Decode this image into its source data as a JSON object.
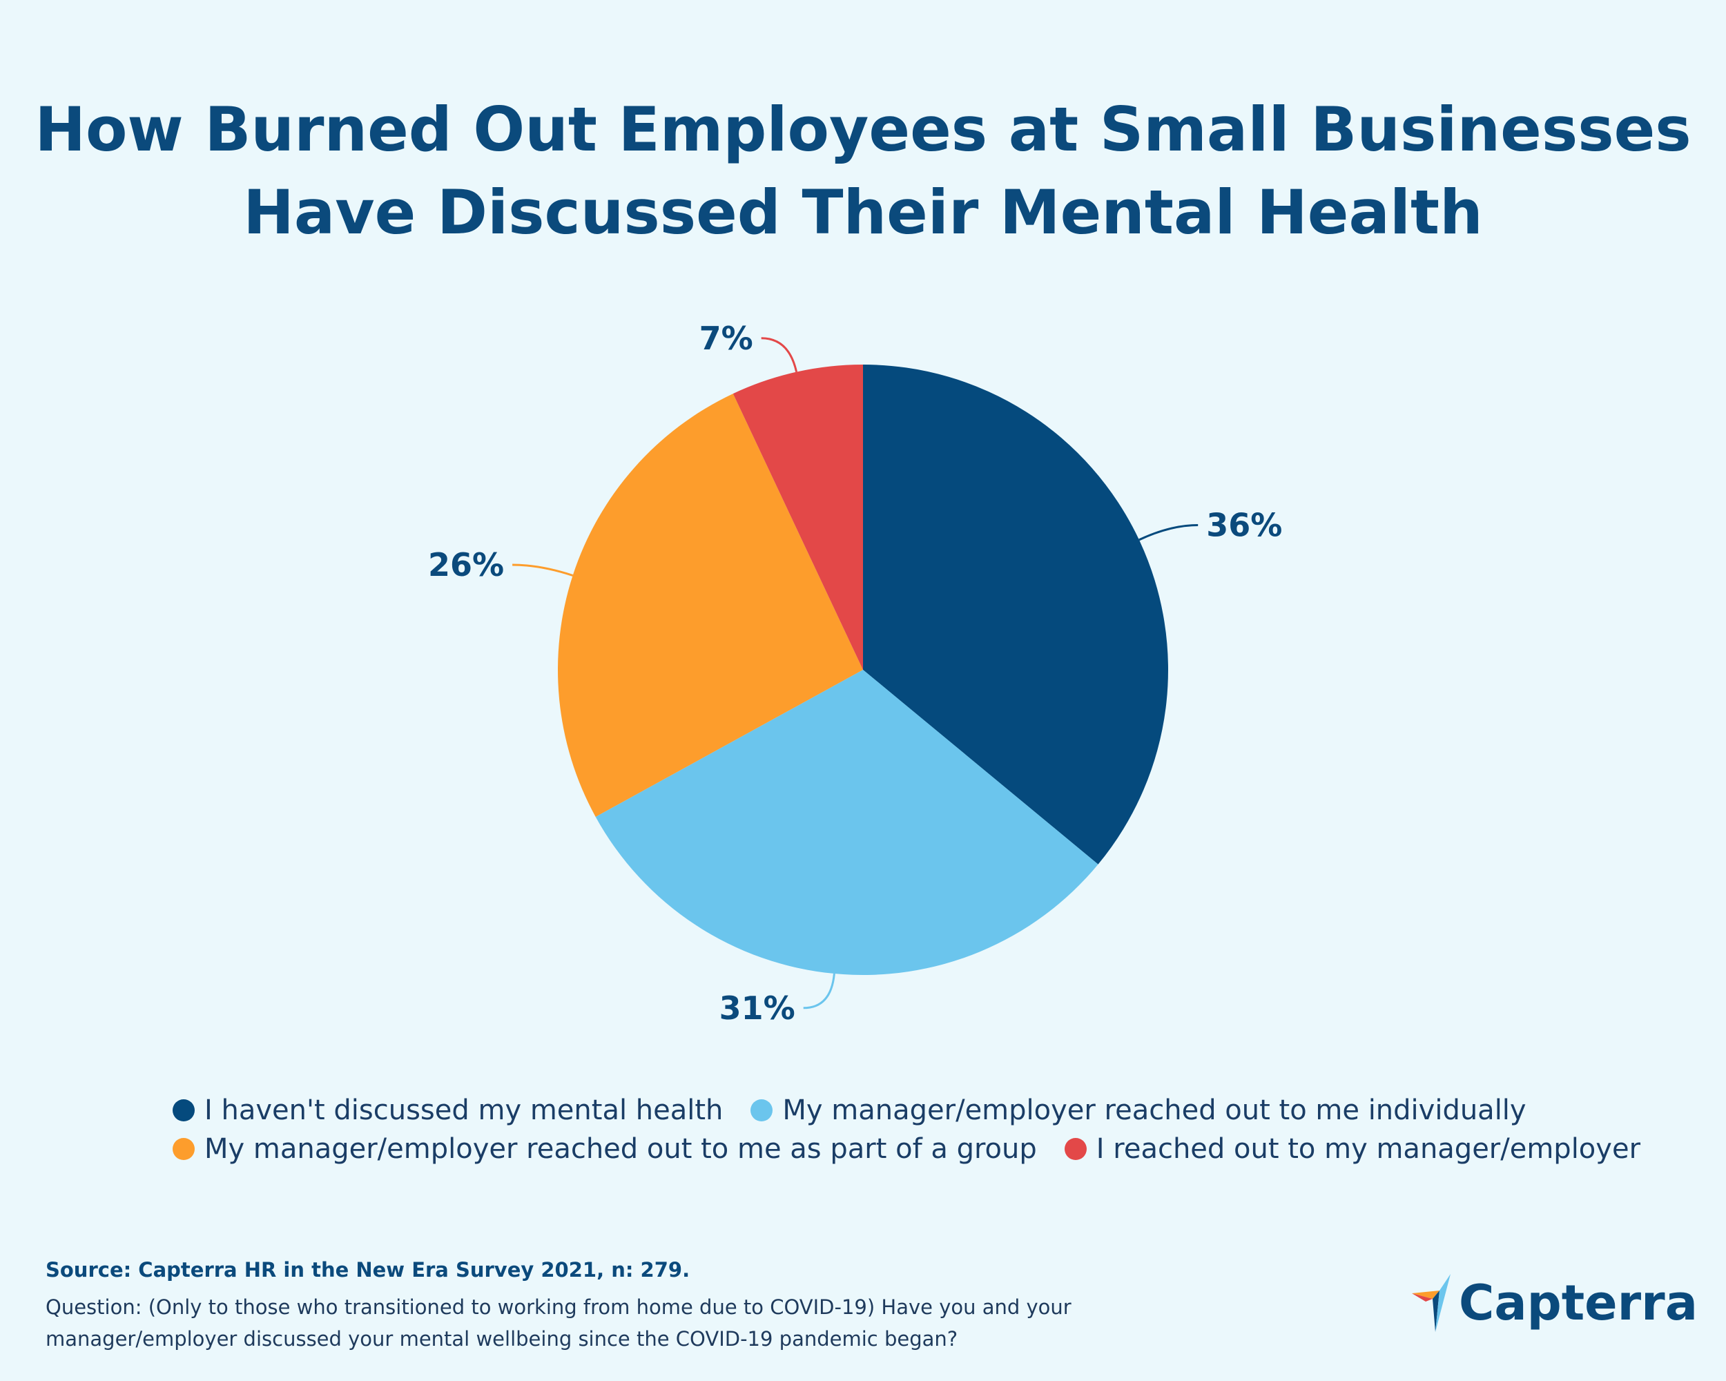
{
  "title_lines": [
    "How Burned Out Employees at Small Businesses",
    "Have Discussed Their Mental Health"
  ],
  "chart_data": {
    "type": "pie",
    "title": "How Burned Out Employees at Small Businesses Have Discussed Their Mental Health",
    "slices": [
      {
        "label": "I haven't discussed my mental health",
        "value": 36,
        "display": "36%",
        "color": "#054a7d"
      },
      {
        "label": "My manager/employer reached out to me individually",
        "value": 31,
        "display": "31%",
        "color": "#6bc5ed"
      },
      {
        "label": "My manager/employer reached out to me as part of a group",
        "value": 26,
        "display": "26%",
        "color": "#fd9d2c"
      },
      {
        "label": "I reached out to my manager/employer",
        "value": 7,
        "display": "7%",
        "color": "#e34848"
      }
    ],
    "legend_position": "bottom"
  },
  "footer": {
    "source": "Source: Capterra HR in the New Era Survey 2021, n: 279.",
    "question_line1": "Question: (Only to those who transitioned to working from home due to COVID-19) Have you and your",
    "question_line2": "manager/employer discussed your mental wellbeing since the COVID-19 pandemic began?"
  },
  "logo": {
    "text": "Capterra"
  }
}
